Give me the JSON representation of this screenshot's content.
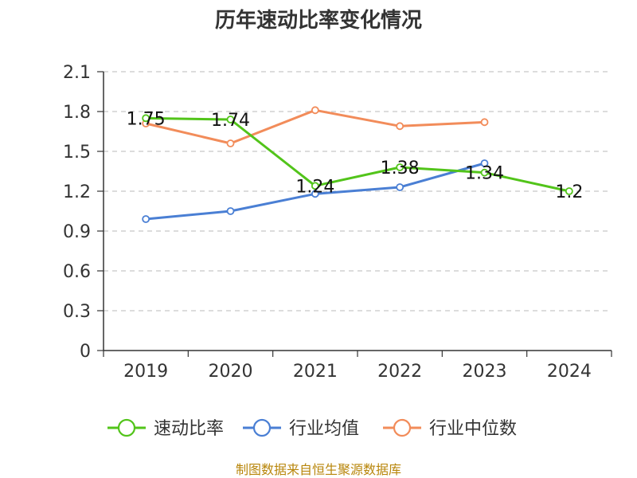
{
  "chart_data": {
    "type": "line",
    "title": "历年速动比率变化情况",
    "xlabel": "",
    "ylabel": "",
    "categories": [
      "2019",
      "2020",
      "2021",
      "2022",
      "2023",
      "2024"
    ],
    "yticks": [
      "0",
      "0.3",
      "0.6",
      "0.9",
      "1.2",
      "1.5",
      "1.8",
      "2.1"
    ],
    "ylim": [
      0,
      2.1
    ],
    "grid": true,
    "legend_position": "bottom",
    "series": [
      {
        "name": "速动比率",
        "color": "#52c41a",
        "values": [
          1.75,
          1.74,
          1.24,
          1.38,
          1.34,
          1.2
        ],
        "labels": [
          "1.75",
          "1.74",
          "1.24",
          "1.38",
          "1.34",
          "1.2"
        ]
      },
      {
        "name": "行业均值",
        "color": "#4a7fd4",
        "values": [
          0.99,
          1.05,
          1.18,
          1.23,
          1.41,
          null
        ]
      },
      {
        "name": "行业中位数",
        "color": "#f28c5a",
        "values": [
          1.71,
          1.56,
          1.81,
          1.69,
          1.72,
          null
        ]
      }
    ]
  },
  "source": "制图数据来自恒生聚源数据库"
}
